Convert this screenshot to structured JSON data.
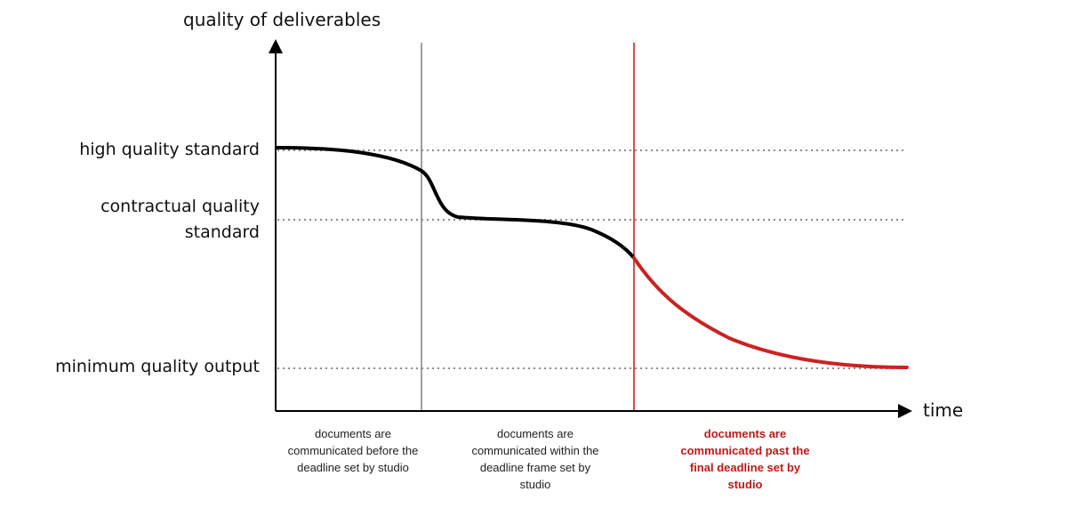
{
  "y_axis_label": "quality of deliverables",
  "x_axis_label": "time",
  "quality_levels": [
    {
      "id": "high",
      "label": "high quality standard"
    },
    {
      "id": "contractual",
      "label": "contractual quality standard",
      "line1": "contractual quality",
      "line2": "standard"
    },
    {
      "id": "minimum",
      "label": "minimum quality output"
    }
  ],
  "phases": [
    {
      "id": "before",
      "text": "documents are communicated before the deadline set by studio",
      "color": "#222222",
      "bold": false
    },
    {
      "id": "within",
      "text": "documents are communicated within the deadline frame set by studio",
      "color": "#222222",
      "bold": false
    },
    {
      "id": "past",
      "text": "documents are communicated past the final deadline set by studio",
      "color": "#c01818",
      "bold": true
    }
  ],
  "colors": {
    "axis": "#000000",
    "curve": "#000000",
    "curve_late": "#cc2222",
    "deadline_1": "#888888",
    "deadline_final": "#cc2222",
    "guide": "#8a8a8a"
  }
}
